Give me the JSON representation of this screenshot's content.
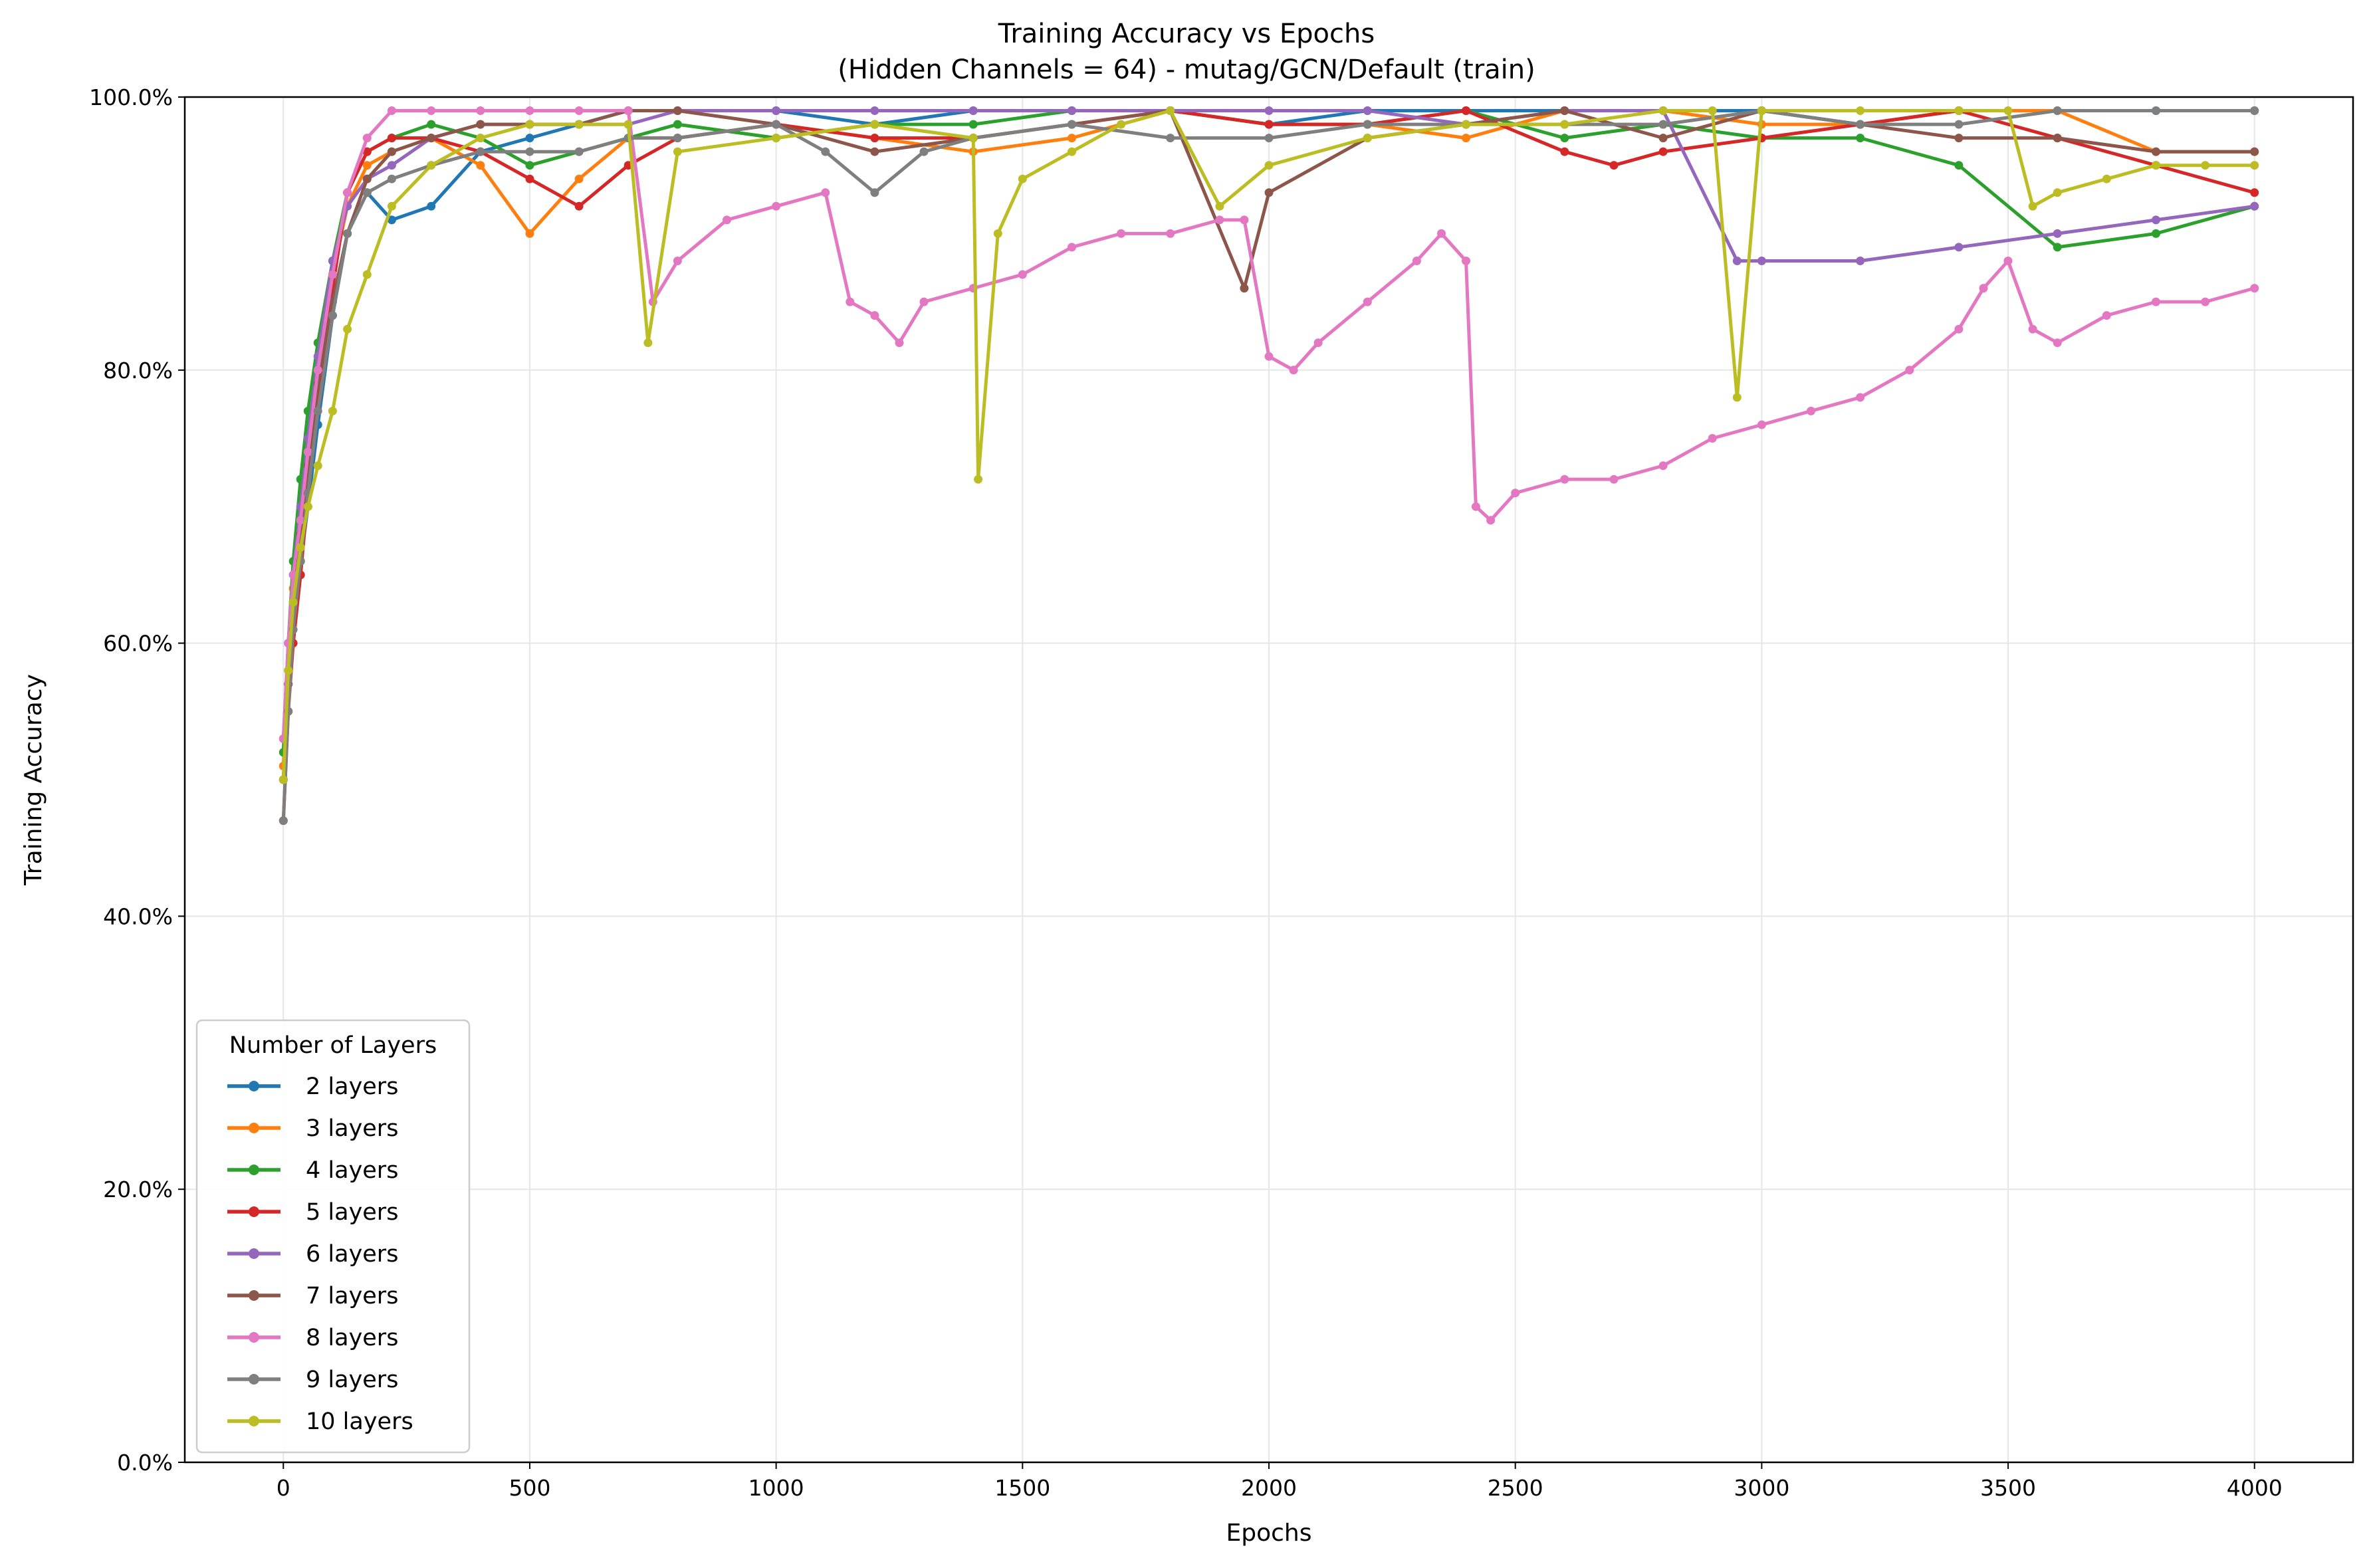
{
  "chart_data": {
    "type": "line",
    "title": "Training Accuracy vs Epochs",
    "subtitle": "(Hidden Channels = 64) - mutag/GCN/Default (train)",
    "xlabel": "Epochs",
    "ylabel": "Training Accuracy",
    "xlim": [
      -200,
      4200
    ],
    "ylim": [
      0,
      1
    ],
    "x_ticks": [
      0,
      500,
      1000,
      1500,
      2000,
      2500,
      3000,
      3500,
      4000
    ],
    "x_tick_labels": [
      "0",
      "500",
      "1000",
      "1500",
      "2000",
      "2500",
      "3000",
      "3500",
      "4000"
    ],
    "y_ticks": [
      0,
      0.2,
      0.4,
      0.6,
      0.8,
      1.0
    ],
    "y_tick_labels": [
      "0.0%",
      "20.0%",
      "40.0%",
      "60.0%",
      "80.0%",
      "100.0%"
    ],
    "grid": true,
    "legend": {
      "title": "Number of Layers",
      "position": "lower-left"
    },
    "series": [
      {
        "name": "2 layers",
        "color": "#1f77b4",
        "x": [
          0,
          10,
          20,
          35,
          50,
          70,
          100,
          130,
          170,
          220,
          300,
          400,
          500,
          600,
          700,
          800,
          1000,
          1200,
          1400,
          1600,
          1800,
          2000,
          2200,
          2400,
          2600,
          2800,
          3000,
          3200,
          3400,
          3600,
          3800,
          4000
        ],
        "y": [
          0.5,
          0.57,
          0.62,
          0.66,
          0.7,
          0.76,
          0.84,
          0.9,
          0.93,
          0.91,
          0.92,
          0.96,
          0.97,
          0.98,
          0.99,
          0.99,
          0.99,
          0.98,
          0.99,
          0.99,
          0.99,
          0.98,
          0.99,
          0.99,
          0.99,
          0.99,
          0.99,
          0.98,
          0.99,
          0.99,
          0.99,
          0.99
        ]
      },
      {
        "name": "3 layers",
        "color": "#ff7f0e",
        "x": [
          0,
          10,
          20,
          35,
          50,
          70,
          100,
          130,
          170,
          220,
          300,
          400,
          500,
          600,
          700,
          800,
          1000,
          1200,
          1400,
          1600,
          1800,
          2000,
          2200,
          2400,
          2600,
          2800,
          3000,
          3200,
          3400,
          3600,
          3800,
          4000
        ],
        "y": [
          0.51,
          0.58,
          0.64,
          0.69,
          0.74,
          0.8,
          0.87,
          0.92,
          0.95,
          0.96,
          0.97,
          0.95,
          0.9,
          0.94,
          0.97,
          0.97,
          0.98,
          0.97,
          0.96,
          0.97,
          0.99,
          0.98,
          0.98,
          0.97,
          0.99,
          0.99,
          0.98,
          0.98,
          0.99,
          0.99,
          0.96,
          0.96
        ]
      },
      {
        "name": "4 layers",
        "color": "#2ca02c",
        "x": [
          0,
          10,
          20,
          35,
          50,
          70,
          100,
          130,
          170,
          220,
          300,
          400,
          500,
          600,
          700,
          800,
          1000,
          1200,
          1400,
          1600,
          1800,
          2000,
          2200,
          2400,
          2600,
          2800,
          3000,
          3200,
          3400,
          3600,
          3800,
          4000
        ],
        "y": [
          0.52,
          0.6,
          0.66,
          0.72,
          0.77,
          0.82,
          0.88,
          0.93,
          0.96,
          0.97,
          0.98,
          0.97,
          0.95,
          0.96,
          0.97,
          0.98,
          0.97,
          0.98,
          0.98,
          0.99,
          0.99,
          0.98,
          0.98,
          0.99,
          0.97,
          0.98,
          0.97,
          0.97,
          0.95,
          0.89,
          0.9,
          0.92
        ]
      },
      {
        "name": "5 layers",
        "color": "#d62728",
        "x": [
          0,
          10,
          20,
          35,
          50,
          70,
          100,
          130,
          170,
          220,
          300,
          400,
          500,
          600,
          700,
          800,
          1000,
          1200,
          1400,
          1600,
          1800,
          2000,
          2200,
          2400,
          2600,
          2700,
          2800,
          3000,
          3200,
          3400,
          3600,
          3800,
          4000
        ],
        "y": [
          0.47,
          0.55,
          0.6,
          0.65,
          0.71,
          0.78,
          0.86,
          0.93,
          0.96,
          0.97,
          0.97,
          0.96,
          0.94,
          0.92,
          0.95,
          0.97,
          0.98,
          0.97,
          0.97,
          0.98,
          0.99,
          0.98,
          0.98,
          0.99,
          0.96,
          0.95,
          0.96,
          0.97,
          0.98,
          0.99,
          0.97,
          0.95,
          0.93
        ]
      },
      {
        "name": "6 layers",
        "color": "#9467bd",
        "x": [
          0,
          10,
          20,
          35,
          50,
          70,
          100,
          130,
          170,
          220,
          300,
          400,
          500,
          600,
          700,
          800,
          1000,
          1200,
          1400,
          1600,
          1800,
          2000,
          2200,
          2400,
          2600,
          2800,
          2950,
          3000,
          3200,
          3400,
          3600,
          3800,
          4000
        ],
        "y": [
          0.53,
          0.6,
          0.65,
          0.7,
          0.75,
          0.81,
          0.88,
          0.92,
          0.94,
          0.95,
          0.97,
          0.98,
          0.98,
          0.98,
          0.98,
          0.99,
          0.99,
          0.99,
          0.99,
          0.99,
          0.99,
          0.99,
          0.99,
          0.98,
          0.99,
          0.99,
          0.88,
          0.88,
          0.88,
          0.89,
          0.9,
          0.91,
          0.92
        ]
      },
      {
        "name": "7 layers",
        "color": "#8c564b",
        "x": [
          0,
          10,
          20,
          35,
          50,
          70,
          100,
          130,
          170,
          220,
          300,
          400,
          500,
          600,
          700,
          800,
          1000,
          1200,
          1400,
          1600,
          1800,
          1950,
          2000,
          2200,
          2400,
          2600,
          2800,
          3000,
          3200,
          3400,
          3600,
          3800,
          4000
        ],
        "y": [
          0.5,
          0.57,
          0.63,
          0.68,
          0.73,
          0.79,
          0.85,
          0.9,
          0.94,
          0.96,
          0.97,
          0.98,
          0.98,
          0.98,
          0.99,
          0.99,
          0.98,
          0.96,
          0.97,
          0.98,
          0.99,
          0.86,
          0.93,
          0.97,
          0.98,
          0.99,
          0.97,
          0.99,
          0.98,
          0.97,
          0.97,
          0.96,
          0.96
        ]
      },
      {
        "name": "8 layers",
        "color": "#e377c2",
        "x": [
          0,
          10,
          20,
          35,
          50,
          70,
          100,
          130,
          170,
          220,
          300,
          400,
          500,
          600,
          700,
          750,
          800,
          900,
          1000,
          1100,
          1150,
          1200,
          1250,
          1300,
          1400,
          1500,
          1600,
          1700,
          1800,
          1900,
          1950,
          2000,
          2050,
          2100,
          2200,
          2300,
          2350,
          2400,
          2420,
          2450,
          2500,
          2600,
          2700,
          2800,
          2900,
          3000,
          3100,
          3200,
          3300,
          3400,
          3450,
          3500,
          3550,
          3600,
          3700,
          3800,
          3900,
          4000
        ],
        "y": [
          0.53,
          0.6,
          0.65,
          0.69,
          0.74,
          0.8,
          0.87,
          0.93,
          0.97,
          0.99,
          0.99,
          0.99,
          0.99,
          0.99,
          0.99,
          0.85,
          0.88,
          0.91,
          0.92,
          0.93,
          0.85,
          0.84,
          0.82,
          0.85,
          0.86,
          0.87,
          0.89,
          0.9,
          0.9,
          0.91,
          0.91,
          0.81,
          0.8,
          0.82,
          0.85,
          0.88,
          0.9,
          0.88,
          0.7,
          0.69,
          0.71,
          0.72,
          0.72,
          0.73,
          0.75,
          0.76,
          0.77,
          0.78,
          0.8,
          0.83,
          0.86,
          0.88,
          0.83,
          0.82,
          0.84,
          0.85,
          0.85,
          0.86
        ]
      },
      {
        "name": "9 layers",
        "color": "#7f7f7f",
        "x": [
          0,
          10,
          20,
          35,
          50,
          70,
          100,
          130,
          170,
          220,
          300,
          400,
          500,
          600,
          700,
          800,
          1000,
          1100,
          1200,
          1300,
          1400,
          1600,
          1800,
          2000,
          2200,
          2400,
          2600,
          2800,
          3000,
          3200,
          3400,
          3600,
          3800,
          4000
        ],
        "y": [
          0.47,
          0.55,
          0.61,
          0.66,
          0.71,
          0.77,
          0.84,
          0.9,
          0.93,
          0.94,
          0.95,
          0.96,
          0.96,
          0.96,
          0.97,
          0.97,
          0.98,
          0.96,
          0.93,
          0.96,
          0.97,
          0.98,
          0.97,
          0.97,
          0.98,
          0.98,
          0.98,
          0.98,
          0.99,
          0.98,
          0.98,
          0.99,
          0.99,
          0.99
        ]
      },
      {
        "name": "10 layers",
        "color": "#bcbd22",
        "x": [
          0,
          10,
          20,
          35,
          50,
          70,
          100,
          130,
          170,
          220,
          300,
          400,
          500,
          600,
          700,
          740,
          800,
          1000,
          1200,
          1400,
          1410,
          1450,
          1500,
          1600,
          1700,
          1800,
          1900,
          2000,
          2200,
          2400,
          2600,
          2800,
          2900,
          2950,
          3000,
          3200,
          3400,
          3500,
          3550,
          3600,
          3700,
          3800,
          3900,
          4000
        ],
        "y": [
          0.5,
          0.58,
          0.63,
          0.67,
          0.7,
          0.73,
          0.77,
          0.83,
          0.87,
          0.92,
          0.95,
          0.97,
          0.98,
          0.98,
          0.98,
          0.82,
          0.96,
          0.97,
          0.98,
          0.97,
          0.72,
          0.9,
          0.94,
          0.96,
          0.98,
          0.99,
          0.92,
          0.95,
          0.97,
          0.98,
          0.98,
          0.99,
          0.99,
          0.78,
          0.99,
          0.99,
          0.99,
          0.99,
          0.92,
          0.93,
          0.94,
          0.95,
          0.95,
          0.95
        ]
      }
    ]
  }
}
